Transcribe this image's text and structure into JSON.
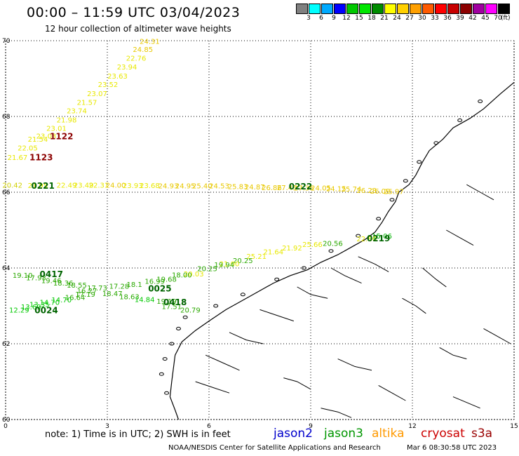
{
  "header": {
    "title": "00:00 – 11:59 UTC 03/04/2023",
    "subtitle": "12 hour collection of altimeter wave heights"
  },
  "colorbar": {
    "labels": [
      "3",
      "6",
      "9",
      "12",
      "15",
      "18",
      "21",
      "24",
      "27",
      "30",
      "33",
      "36",
      "39",
      "42",
      "45",
      "70"
    ],
    "unit": "(ft)",
    "colors": [
      "#808080",
      "#00ffff",
      "#00aaff",
      "#0000ff",
      "#00c800",
      "#00e600",
      "#008c00",
      "#ffff00",
      "#ffd000",
      "#ffa000",
      "#ff5a00",
      "#ff0000",
      "#c80000",
      "#8c0000",
      "#a000a0",
      "#ff00ff",
      "#000000"
    ]
  },
  "map": {
    "lat_range": [
      60,
      70
    ],
    "lon_range": [
      0,
      15
    ],
    "lat_ticks": [
      "70",
      "68",
      "66",
      "64",
      "62",
      "60"
    ],
    "lon_ticks": [
      "0",
      "3",
      "6",
      "9",
      "12",
      "15"
    ],
    "grid": "dotted",
    "swh_labels": [
      {
        "v": "24.31",
        "lat": 69.92,
        "lon": 4.25,
        "c": "#e8c800"
      },
      {
        "v": "24.85",
        "lat": 69.7,
        "lon": 4.05,
        "c": "#e8c800"
      },
      {
        "v": "22.76",
        "lat": 69.47,
        "lon": 3.85,
        "c": "#e8e800"
      },
      {
        "v": "23.94",
        "lat": 69.24,
        "lon": 3.58,
        "c": "#e8e800"
      },
      {
        "v": "23.63",
        "lat": 69.0,
        "lon": 3.3,
        "c": "#e8e800"
      },
      {
        "v": "23.52",
        "lat": 68.78,
        "lon": 3.02,
        "c": "#e8e800"
      },
      {
        "v": "23.07",
        "lat": 68.54,
        "lon": 2.7,
        "c": "#e8e800"
      },
      {
        "v": "21.57",
        "lat": 68.31,
        "lon": 2.4,
        "c": "#e8e800"
      },
      {
        "v": "23.74",
        "lat": 68.08,
        "lon": 2.1,
        "c": "#e8e800"
      },
      {
        "v": "21.98",
        "lat": 67.84,
        "lon": 1.8,
        "c": "#e8e800"
      },
      {
        "v": "23.01",
        "lat": 67.62,
        "lon": 1.5,
        "c": "#e8e800"
      },
      {
        "v": "23.03",
        "lat": 67.42,
        "lon": 1.2,
        "c": "#e8e800"
      },
      {
        "v": "21.54",
        "lat": 67.33,
        "lon": 0.95,
        "c": "#e8e800"
      },
      {
        "v": "22.05",
        "lat": 67.1,
        "lon": 0.65,
        "c": "#e8e800"
      },
      {
        "v": "21.67",
        "lat": 66.85,
        "lon": 0.35,
        "c": "#e8e800"
      },
      {
        "v": "20.42",
        "lat": 66.12,
        "lon": 0.2,
        "c": "#d0d000"
      },
      {
        "v": "21.95",
        "lat": 66.11,
        "lon": 0.95,
        "c": "#e8e800"
      },
      {
        "v": "22.49",
        "lat": 66.12,
        "lon": 1.8,
        "c": "#e8e800"
      },
      {
        "v": "23.49",
        "lat": 66.12,
        "lon": 2.3,
        "c": "#e8e800"
      },
      {
        "v": "22.31",
        "lat": 66.12,
        "lon": 2.75,
        "c": "#e8e800"
      },
      {
        "v": "24.00",
        "lat": 66.12,
        "lon": 3.25,
        "c": "#e8c800"
      },
      {
        "v": "23.93",
        "lat": 66.11,
        "lon": 3.75,
        "c": "#e8e800"
      },
      {
        "v": "23.68",
        "lat": 66.11,
        "lon": 4.25,
        "c": "#e8e800"
      },
      {
        "v": "24.93",
        "lat": 66.1,
        "lon": 4.8,
        "c": "#e8c800"
      },
      {
        "v": "24.95",
        "lat": 66.1,
        "lon": 5.3,
        "c": "#e8c800"
      },
      {
        "v": "25.40",
        "lat": 66.1,
        "lon": 5.8,
        "c": "#e8c800"
      },
      {
        "v": "24.53",
        "lat": 66.1,
        "lon": 6.3,
        "c": "#e8c800"
      },
      {
        "v": "25.83",
        "lat": 66.08,
        "lon": 6.85,
        "c": "#e8c800"
      },
      {
        "v": "24.87",
        "lat": 66.07,
        "lon": 7.35,
        "c": "#e8c800"
      },
      {
        "v": "26.86",
        "lat": 66.06,
        "lon": 7.85,
        "c": "#e8c800"
      },
      {
        "v": "27.49",
        "lat": 66.06,
        "lon": 8.3,
        "c": "#e8c800"
      },
      {
        "v": "27.36",
        "lat": 66.05,
        "lon": 8.8,
        "c": "#e8c800"
      },
      {
        "v": "24.05",
        "lat": 66.05,
        "lon": 9.3,
        "c": "#e8c800"
      },
      {
        "v": "24.15",
        "lat": 66.03,
        "lon": 9.75,
        "c": "#e8c800"
      },
      {
        "v": "25.74",
        "lat": 66.02,
        "lon": 10.2,
        "c": "#e8c800"
      },
      {
        "v": "26.23",
        "lat": 65.98,
        "lon": 10.65,
        "c": "#e8c800"
      },
      {
        "v": "26.09",
        "lat": 65.96,
        "lon": 11.05,
        "c": "#e8c800"
      },
      {
        "v": "25.97",
        "lat": 65.95,
        "lon": 11.45,
        "c": "#e8c800"
      },
      {
        "v": "15.06",
        "lat": 64.78,
        "lon": 11.1,
        "c": "#00b400"
      },
      {
        "v": "22.80",
        "lat": 64.7,
        "lon": 10.65,
        "c": "#e8e800"
      },
      {
        "v": "20.56",
        "lat": 64.58,
        "lon": 9.65,
        "c": "#2aa800"
      },
      {
        "v": "25.66",
        "lat": 64.56,
        "lon": 9.05,
        "c": "#e8e800"
      },
      {
        "v": "21.92",
        "lat": 64.46,
        "lon": 8.45,
        "c": "#e8e800"
      },
      {
        "v": "21.64",
        "lat": 64.36,
        "lon": 7.9,
        "c": "#e8e800"
      },
      {
        "v": "25.21",
        "lat": 64.24,
        "lon": 7.4,
        "c": "#e8e800"
      },
      {
        "v": "20.25",
        "lat": 64.13,
        "lon": 7.0,
        "c": "#2aa800"
      },
      {
        "v": "21.00",
        "lat": 64.05,
        "lon": 6.6,
        "c": "#e8e800"
      },
      {
        "v": "19.94",
        "lat": 64.02,
        "lon": 6.45,
        "c": "#2aa800"
      },
      {
        "v": "20.25",
        "lat": 63.92,
        "lon": 5.95,
        "c": "#2aa800"
      },
      {
        "v": "20.03",
        "lat": 63.78,
        "lon": 5.55,
        "c": "#e8e800"
      },
      {
        "v": "18.00",
        "lat": 63.75,
        "lon": 5.2,
        "c": "#2aa800"
      },
      {
        "v": "19.68",
        "lat": 63.64,
        "lon": 4.75,
        "c": "#2aa800"
      },
      {
        "v": "16.99",
        "lat": 63.58,
        "lon": 4.4,
        "c": "#2aa800"
      },
      {
        "v": "18.1",
        "lat": 63.5,
        "lon": 3.8,
        "c": "#2aa800"
      },
      {
        "v": "17.28",
        "lat": 63.45,
        "lon": 3.35,
        "c": "#2aa800"
      },
      {
        "v": "17.73",
        "lat": 63.41,
        "lon": 2.7,
        "c": "#2aa800"
      },
      {
        "v": "16.27",
        "lat": 63.33,
        "lon": 2.4,
        "c": "#2aa800"
      },
      {
        "v": "18.47",
        "lat": 63.26,
        "lon": 3.15,
        "c": "#2aa800"
      },
      {
        "v": "17.19",
        "lat": 63.24,
        "lon": 2.35,
        "c": "#2aa800"
      },
      {
        "v": "18.63",
        "lat": 63.18,
        "lon": 3.65,
        "c": "#2aa800"
      },
      {
        "v": "16.64",
        "lat": 63.16,
        "lon": 2.05,
        "c": "#2aa800"
      },
      {
        "v": "14.84",
        "lat": 63.1,
        "lon": 4.1,
        "c": "#00c800"
      },
      {
        "v": "19.19",
        "lat": 63.06,
        "lon": 4.75,
        "c": "#2aa800"
      },
      {
        "v": "17.51",
        "lat": 62.92,
        "lon": 4.9,
        "c": "#2aa800"
      },
      {
        "v": "20.79",
        "lat": 62.82,
        "lon": 5.45,
        "c": "#2aa800"
      },
      {
        "v": "19.10",
        "lat": 63.74,
        "lon": 0.5,
        "c": "#2aa800"
      },
      {
        "v": "17.93",
        "lat": 63.68,
        "lon": 0.9,
        "c": "#2aa800"
      },
      {
        "v": "19.46",
        "lat": 63.6,
        "lon": 1.35,
        "c": "#2aa800"
      },
      {
        "v": "18.36",
        "lat": 63.54,
        "lon": 1.7,
        "c": "#2aa800"
      },
      {
        "v": "18.55",
        "lat": 63.48,
        "lon": 2.1,
        "c": "#2aa800"
      },
      {
        "v": "14.70",
        "lat": 63.09,
        "lon": 1.65,
        "c": "#00c800"
      },
      {
        "v": "14.70",
        "lat": 63.03,
        "lon": 1.3,
        "c": "#00c800"
      },
      {
        "v": "13.35",
        "lat": 62.97,
        "lon": 1.0,
        "c": "#00c800"
      },
      {
        "v": "13.69",
        "lat": 62.91,
        "lon": 0.75,
        "c": "#00c800"
      },
      {
        "v": "12.29",
        "lat": 62.82,
        "lon": 0.4,
        "c": "#00c800"
      }
    ],
    "time_labels": [
      {
        "t": "1122",
        "lat": 67.4,
        "lon": 1.65,
        "c": "#8c0000"
      },
      {
        "t": "1123",
        "lat": 66.84,
        "lon": 1.05,
        "c": "#8c0000"
      },
      {
        "t": "0221",
        "lat": 66.09,
        "lon": 1.1,
        "c": "#006400"
      },
      {
        "t": "0222",
        "lat": 66.07,
        "lon": 8.7,
        "c": "#006400"
      },
      {
        "t": "0219",
        "lat": 64.7,
        "lon": 11.0,
        "c": "#006400"
      },
      {
        "t": "0417",
        "lat": 63.76,
        "lon": 1.35,
        "c": "#006400"
      },
      {
        "t": "0025",
        "lat": 63.38,
        "lon": 4.55,
        "c": "#006400"
      },
      {
        "t": "0418",
        "lat": 63.02,
        "lon": 5.0,
        "c": "#006400"
      },
      {
        "t": "0024",
        "lat": 62.81,
        "lon": 1.2,
        "c": "#006400"
      }
    ]
  },
  "footer": {
    "note": "note: 1) Time is in UTC; 2) SWH is in feet",
    "satellites": [
      {
        "name": "jason2",
        "color": "#0000cc"
      },
      {
        "name": "jason3",
        "color": "#009600"
      },
      {
        "name": "altika",
        "color": "#ff9900"
      },
      {
        "name": "cryosat",
        "color": "#cc0000"
      },
      {
        "name": "s3a",
        "color": "#990000"
      }
    ],
    "credit": "NOAA/NESDIS Center for Satellite Applications and Research",
    "date": "Mar 6 08:30:58 UTC 2023"
  }
}
